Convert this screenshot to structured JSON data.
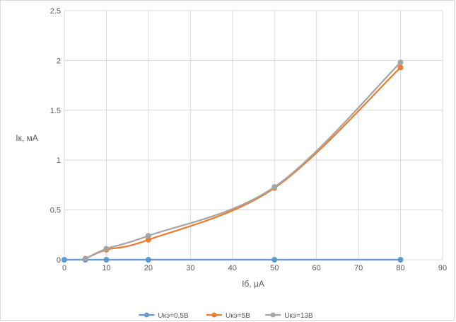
{
  "chart_data": {
    "type": "line",
    "title": "",
    "xlabel": "Іб, μА",
    "ylabel": "Ік, мА",
    "xlim": [
      0,
      90
    ],
    "ylim": [
      0,
      2.5
    ],
    "x_ticks": [
      "0",
      "10",
      "20",
      "30",
      "40",
      "50",
      "60",
      "70",
      "80",
      "90"
    ],
    "y_ticks": [
      "0",
      "0.5",
      "1",
      "1.5",
      "2",
      "2.5"
    ],
    "grid": "vertical and horizontal major gridlines",
    "legend_position": "bottom",
    "smoothed": true,
    "series": [
      {
        "name": "Uкэ=0,5В",
        "color": "#5b9bd5",
        "x": [
          0,
          5,
          10,
          20,
          50,
          80
        ],
        "values": [
          0,
          0,
          0,
          0,
          0,
          0
        ]
      },
      {
        "name": "Uкэ=5В",
        "color": "#ed7d31",
        "x": [
          5,
          10,
          20,
          50,
          80
        ],
        "values": [
          0.01,
          0.1,
          0.2,
          0.72,
          1.93
        ]
      },
      {
        "name": "Uкэ=13В",
        "color": "#a5a5a5",
        "x": [
          5,
          10,
          20,
          50,
          80
        ],
        "values": [
          0.01,
          0.11,
          0.24,
          0.73,
          1.98
        ]
      }
    ]
  }
}
